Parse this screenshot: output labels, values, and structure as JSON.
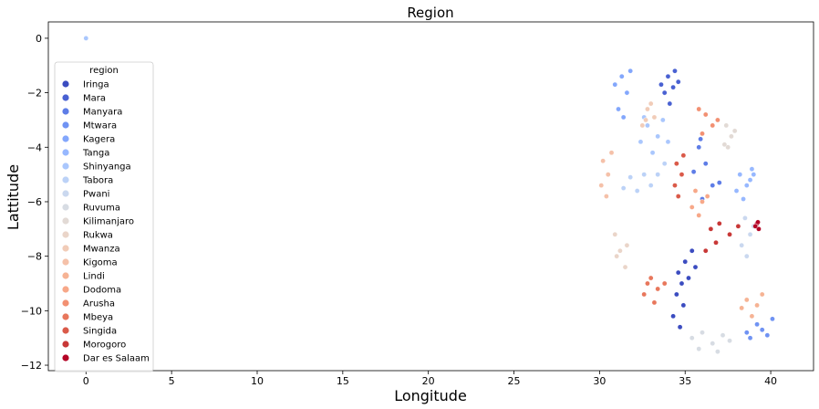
{
  "chart_data": {
    "type": "scatter",
    "title": "Region",
    "xlabel": "Longitude",
    "ylabel": "Lattitude",
    "xlim": [
      -2.2,
      42.5
    ],
    "ylim": [
      -12.2,
      0.6
    ],
    "xticks": [
      0,
      5,
      10,
      15,
      20,
      25,
      30,
      35,
      40
    ],
    "yticks": [
      0,
      -2,
      -4,
      -6,
      -8,
      -10,
      -12
    ],
    "grid": false,
    "legend": {
      "title": "region",
      "placement": "left"
    },
    "series": [
      {
        "name": "Iringa",
        "color": "#3b4cc0",
        "points": [
          [
            34.6,
            -8.6
          ],
          [
            34.8,
            -9.0
          ],
          [
            35.0,
            -8.2
          ],
          [
            34.5,
            -9.4
          ],
          [
            35.2,
            -8.8
          ],
          [
            34.9,
            -9.8
          ],
          [
            34.3,
            -10.2
          ],
          [
            35.4,
            -7.8
          ],
          [
            35.6,
            -8.4
          ],
          [
            34.7,
            -10.6
          ]
        ]
      },
      {
        "name": "Mara",
        "color": "#4961d2",
        "points": [
          [
            34.0,
            -1.4
          ],
          [
            34.3,
            -1.8
          ],
          [
            33.8,
            -2.0
          ],
          [
            34.6,
            -1.6
          ],
          [
            34.1,
            -2.4
          ],
          [
            33.6,
            -1.7
          ],
          [
            34.4,
            -1.2
          ]
        ]
      },
      {
        "name": "Manyara",
        "color": "#5e7de7",
        "points": [
          [
            35.8,
            -4.0
          ],
          [
            36.2,
            -4.6
          ],
          [
            35.5,
            -4.9
          ],
          [
            36.6,
            -5.4
          ],
          [
            35.9,
            -3.7
          ],
          [
            36.0,
            -5.9
          ],
          [
            37.0,
            -5.3
          ]
        ]
      },
      {
        "name": "Mtwara",
        "color": "#7093f3",
        "points": [
          [
            38.6,
            -10.8
          ],
          [
            39.2,
            -10.5
          ],
          [
            39.8,
            -10.9
          ],
          [
            40.1,
            -10.3
          ],
          [
            38.8,
            -11.0
          ],
          [
            39.5,
            -10.7
          ]
        ]
      },
      {
        "name": "Kagera",
        "color": "#83a7fc",
        "points": [
          [
            31.3,
            -1.4
          ],
          [
            31.6,
            -2.0
          ],
          [
            31.1,
            -2.6
          ],
          [
            31.8,
            -1.2
          ],
          [
            30.9,
            -1.7
          ],
          [
            31.4,
            -2.9
          ]
        ]
      },
      {
        "name": "Tanga",
        "color": "#97b8ff",
        "points": [
          [
            38.2,
            -5.0
          ],
          [
            38.6,
            -5.4
          ],
          [
            38.9,
            -4.8
          ],
          [
            38.4,
            -5.9
          ],
          [
            38.8,
            -5.2
          ],
          [
            38.0,
            -5.6
          ],
          [
            39.0,
            -5.0
          ]
        ]
      },
      {
        "name": "Shinyanga",
        "color": "#aac7fd",
        "points": [
          [
            32.8,
            -3.2
          ],
          [
            33.4,
            -3.6
          ],
          [
            32.4,
            -3.8
          ],
          [
            33.1,
            -4.2
          ],
          [
            33.7,
            -3.0
          ],
          [
            32.6,
            -2.9
          ],
          [
            34.0,
            -3.8
          ],
          [
            0.0,
            0.0
          ]
        ]
      },
      {
        "name": "Tabora",
        "color": "#bcd2f7",
        "points": [
          [
            32.6,
            -5.0
          ],
          [
            33.0,
            -5.4
          ],
          [
            31.8,
            -5.1
          ],
          [
            32.2,
            -5.6
          ],
          [
            33.4,
            -5.0
          ],
          [
            31.4,
            -5.5
          ],
          [
            33.8,
            -4.6
          ]
        ]
      },
      {
        "name": "Pwani",
        "color": "#cad8ef",
        "points": [
          [
            38.5,
            -6.6
          ],
          [
            38.8,
            -7.2
          ],
          [
            38.3,
            -7.6
          ],
          [
            39.0,
            -6.9
          ],
          [
            38.6,
            -8.0
          ]
        ]
      },
      {
        "name": "Ruvuma",
        "color": "#d7dce3",
        "points": [
          [
            35.4,
            -11.0
          ],
          [
            36.0,
            -10.8
          ],
          [
            36.6,
            -11.2
          ],
          [
            37.2,
            -10.9
          ],
          [
            35.8,
            -11.4
          ],
          [
            36.9,
            -11.5
          ],
          [
            37.6,
            -11.1
          ]
        ]
      },
      {
        "name": "Kilimanjaro",
        "color": "#e2dad5",
        "points": [
          [
            37.4,
            -3.2
          ],
          [
            37.7,
            -3.6
          ],
          [
            37.5,
            -4.0
          ],
          [
            37.9,
            -3.4
          ],
          [
            37.3,
            -3.9
          ]
        ]
      },
      {
        "name": "Rukwa",
        "color": "#ead5c9",
        "points": [
          [
            31.2,
            -7.8
          ],
          [
            31.5,
            -8.4
          ],
          [
            30.9,
            -7.2
          ],
          [
            31.0,
            -8.0
          ],
          [
            31.6,
            -7.6
          ]
        ]
      },
      {
        "name": "Mwanza",
        "color": "#f1ccb8",
        "points": [
          [
            32.8,
            -2.6
          ],
          [
            33.2,
            -2.9
          ],
          [
            32.5,
            -3.2
          ],
          [
            33.0,
            -2.4
          ],
          [
            32.7,
            -3.0
          ]
        ]
      },
      {
        "name": "Kigoma",
        "color": "#f5c1a9",
        "points": [
          [
            30.2,
            -4.5
          ],
          [
            30.5,
            -5.0
          ],
          [
            30.1,
            -5.4
          ],
          [
            30.7,
            -4.2
          ],
          [
            30.4,
            -5.8
          ]
        ]
      },
      {
        "name": "Lindi",
        "color": "#f6b394",
        "points": [
          [
            38.6,
            -9.6
          ],
          [
            39.2,
            -9.8
          ],
          [
            38.9,
            -10.2
          ],
          [
            39.5,
            -9.4
          ],
          [
            38.3,
            -9.9
          ]
        ]
      },
      {
        "name": "Dodoma",
        "color": "#f7a889",
        "points": [
          [
            35.6,
            -5.6
          ],
          [
            36.0,
            -6.0
          ],
          [
            35.8,
            -6.5
          ],
          [
            36.3,
            -5.8
          ],
          [
            35.4,
            -6.2
          ]
        ]
      },
      {
        "name": "Arusha",
        "color": "#f29072",
        "points": [
          [
            36.2,
            -2.8
          ],
          [
            36.6,
            -3.2
          ],
          [
            36.0,
            -3.5
          ],
          [
            36.9,
            -3.0
          ],
          [
            35.8,
            -2.6
          ]
        ]
      },
      {
        "name": "Mbeya",
        "color": "#e8775c",
        "points": [
          [
            33.0,
            -8.8
          ],
          [
            33.4,
            -9.2
          ],
          [
            32.6,
            -9.4
          ],
          [
            33.8,
            -9.0
          ],
          [
            33.2,
            -9.7
          ],
          [
            32.8,
            -9.0
          ]
        ]
      },
      {
        "name": "Singida",
        "color": "#da5a49",
        "points": [
          [
            34.5,
            -4.6
          ],
          [
            34.8,
            -5.0
          ],
          [
            34.4,
            -5.4
          ],
          [
            34.9,
            -4.3
          ],
          [
            34.6,
            -5.8
          ]
        ]
      },
      {
        "name": "Morogoro",
        "color": "#c83837",
        "points": [
          [
            36.5,
            -7.0
          ],
          [
            37.0,
            -6.8
          ],
          [
            37.6,
            -7.2
          ],
          [
            36.8,
            -7.5
          ],
          [
            38.1,
            -6.9
          ],
          [
            36.2,
            -7.8
          ]
        ]
      },
      {
        "name": "Dar es Salaam",
        "color": "#b40426",
        "points": [
          [
            39.2,
            -6.8
          ],
          [
            39.3,
            -7.0
          ],
          [
            39.1,
            -6.9
          ],
          [
            39.25,
            -6.75
          ]
        ]
      }
    ]
  }
}
